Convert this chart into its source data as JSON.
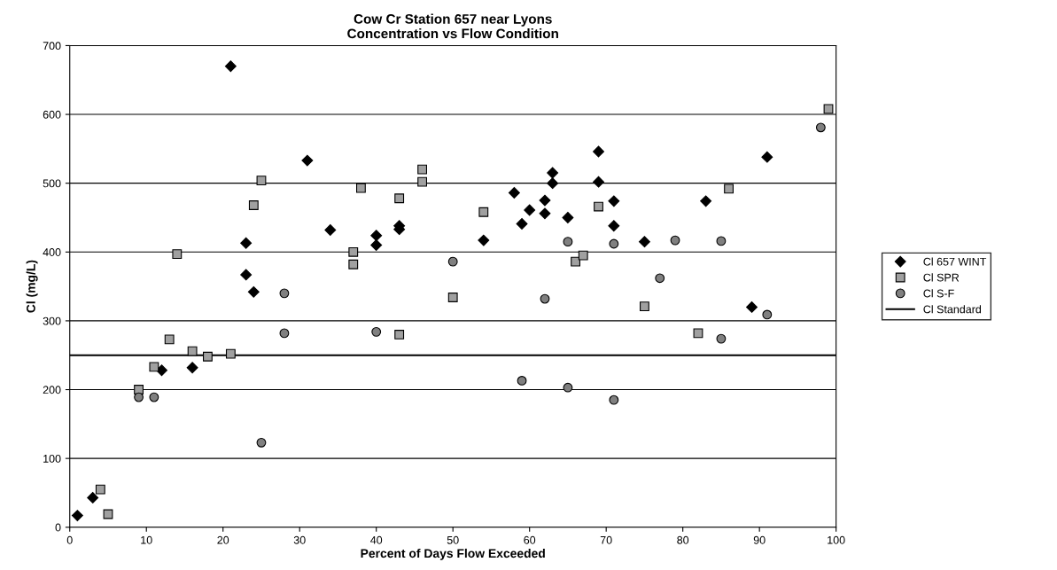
{
  "chart_data": {
    "type": "scatter",
    "title": "Cow Cr Station 657 near Lyons\nConcentration vs Flow Condition",
    "xlabel": "Percent of Days Flow Exceeded",
    "ylabel": "Cl (mg/L)",
    "xlim": [
      0,
      100
    ],
    "xticks": [
      0,
      10,
      20,
      30,
      40,
      50,
      60,
      70,
      80,
      90,
      100
    ],
    "ylim": [
      0,
      700
    ],
    "yticks": [
      0,
      100,
      200,
      300,
      400,
      500,
      600,
      700
    ],
    "grid": "y",
    "legend": "right",
    "series": [
      {
        "name": "Cl 657 WINT",
        "color": "#000000",
        "marker": "diamond",
        "x": [
          1,
          3,
          12,
          16,
          21,
          23,
          23,
          24,
          31,
          34,
          40,
          40,
          43,
          43,
          54,
          58,
          59,
          60,
          62,
          62,
          63,
          63,
          65,
          69,
          69,
          71,
          71,
          75,
          83,
          89,
          91
        ],
        "values": [
          17,
          43,
          228,
          232,
          670,
          413,
          367,
          342,
          533,
          432,
          424,
          410,
          438,
          433,
          417,
          486,
          441,
          461,
          475,
          456,
          515,
          500,
          450,
          546,
          502,
          474,
          438,
          415,
          474,
          320,
          538
        ]
      },
      {
        "name": "Cl SPR",
        "color": "#a0a0a0",
        "marker": "square",
        "x": [
          4,
          5,
          9,
          11,
          13,
          14,
          16,
          18,
          21,
          24,
          25,
          37,
          37,
          38,
          43,
          43,
          46,
          46,
          50,
          54,
          66,
          67,
          69,
          75,
          82,
          86,
          99
        ],
        "values": [
          55,
          19,
          200,
          233,
          273,
          397,
          256,
          248,
          252,
          468,
          504,
          400,
          382,
          493,
          478,
          280,
          520,
          502,
          334,
          458,
          386,
          395,
          466,
          321,
          282,
          492,
          608
        ]
      },
      {
        "name": "Cl S-F",
        "color": "#808080",
        "marker": "circle",
        "x": [
          9,
          11,
          25,
          28,
          28,
          40,
          50,
          59,
          62,
          65,
          65,
          71,
          71,
          77,
          79,
          85,
          85,
          91,
          98
        ],
        "values": [
          189,
          189,
          123,
          340,
          282,
          284,
          386,
          213,
          332,
          203,
          415,
          412,
          185,
          362,
          417,
          416,
          274,
          309,
          581
        ]
      }
    ],
    "ref_lines": [
      {
        "axis": "y",
        "value": 250,
        "label": "Cl Standard",
        "color": "#000000",
        "line_style": "solid"
      }
    ]
  }
}
